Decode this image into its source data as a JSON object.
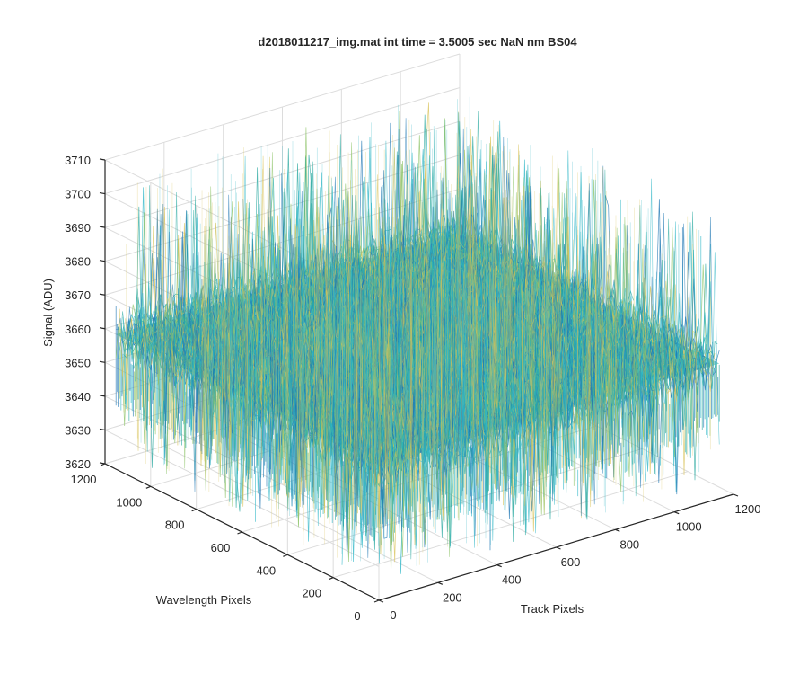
{
  "chart_data": {
    "type": "surface",
    "title": "d2018011217_img.mat int time = 3.5005 sec  NaN nm BS04",
    "xlabel": "Track Pixels",
    "ylabel": "Wavelength Pixels",
    "zlabel": "Signal (ADU)",
    "xlim": [
      0,
      1200
    ],
    "ylim": [
      0,
      1200
    ],
    "zlim": [
      3620,
      3710
    ],
    "xticks": [
      0,
      200,
      400,
      600,
      800,
      1000,
      1200
    ],
    "yticks": [
      0,
      200,
      400,
      600,
      800,
      1000,
      1200
    ],
    "zticks": [
      3620,
      3630,
      3640,
      3650,
      3660,
      3670,
      3680,
      3690,
      3700,
      3710
    ],
    "grid": true,
    "surface": {
      "x_range": [
        0,
        1152
      ],
      "y_range": [
        0,
        1152
      ],
      "mean_signal": 3660,
      "noise_min": 3625,
      "noise_max": 3705
    },
    "colors": {
      "blue": "#1f77b4",
      "teal": "#2aa9a0",
      "cyan": "#33b8c8",
      "yellow": "#d9c35a",
      "green": "#8fc46a"
    }
  }
}
